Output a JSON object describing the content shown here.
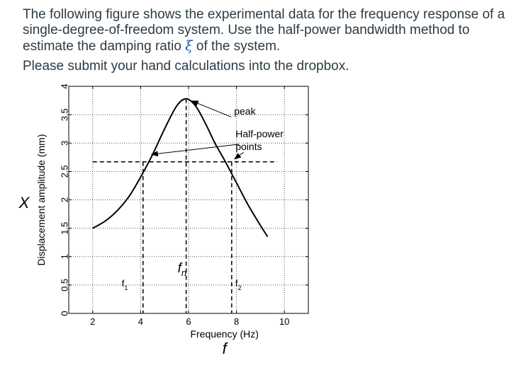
{
  "question": {
    "line1": "The following figure shows the experimental data for the frequency response of a",
    "line2": "single-degree-of-freedom system. Use the half-power bandwidth method to",
    "line3_pre": "estimate the damping ratio ",
    "line3_symbol": "ξ",
    "line3_post": " of the system.",
    "line4": "Please submit your hand calculations into the dropbox."
  },
  "chart_data": {
    "type": "line",
    "xlabel": "Frequency (Hz)",
    "ylabel": "Displacement amplitude (mm)",
    "x_symbol": "f",
    "y_symbol": "X",
    "xlim": [
      1,
      11
    ],
    "ylim": [
      0,
      4
    ],
    "xticks": [
      2,
      4,
      6,
      8,
      10
    ],
    "yticks": [
      0,
      0.5,
      1,
      1.5,
      2,
      2.5,
      3,
      3.5,
      4
    ],
    "ytick_labels": [
      "0",
      "0.5",
      "1",
      "1.5",
      "2",
      "2.5",
      "3",
      "3.5",
      "4"
    ],
    "grid": true,
    "series": [
      {
        "x": [
          2.0,
          2.5,
          3.0,
          3.5,
          4.0,
          4.5,
          5.0,
          5.5,
          5.9,
          6.3,
          6.7,
          7.1,
          7.5,
          8.0,
          8.5,
          9.0,
          9.3
        ],
        "y": [
          1.5,
          1.62,
          1.8,
          2.05,
          2.4,
          2.8,
          3.25,
          3.65,
          3.78,
          3.65,
          3.35,
          3.0,
          2.7,
          2.3,
          1.9,
          1.55,
          1.35
        ]
      }
    ],
    "peak": {
      "x": 5.9,
      "y": 3.78
    },
    "half_power": {
      "level": 2.67,
      "f1": 4.1,
      "f2": 7.8
    },
    "fn": 5.9,
    "annotations": {
      "peak": "peak",
      "half_power_1": "Half-power",
      "half_power_2": "points",
      "f1_base": "f",
      "f1_sub": "1",
      "f2_base": "f",
      "f2_sub": "2",
      "fn_base": "f",
      "fn_sub": "n"
    }
  }
}
